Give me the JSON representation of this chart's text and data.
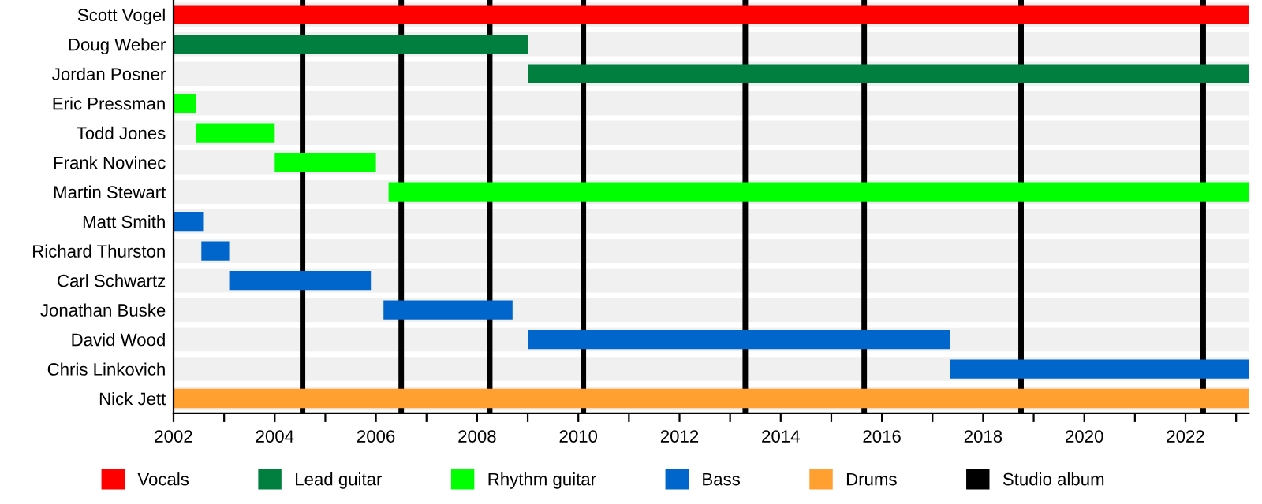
{
  "chart_data": {
    "type": "bar",
    "orientation": "horizontal",
    "categories": [
      "Scott Vogel",
      "Doug Weber",
      "Jordan Posner",
      "Eric Pressman",
      "Todd Jones",
      "Frank Novinec",
      "Martin Stewart",
      "Matt Smith",
      "Richard Thurston",
      "Carl Schwartz",
      "Jonathan Buske",
      "David Wood",
      "Chris Linkovich",
      "Nick Jett"
    ],
    "series": [
      {
        "name": "Vocals",
        "color": "#ff0000",
        "base": [
          2002,
          null,
          null,
          null,
          null,
          null,
          null,
          null,
          null,
          null,
          null,
          null,
          null,
          null
        ],
        "values": [
          21.25,
          null,
          null,
          null,
          null,
          null,
          null,
          null,
          null,
          null,
          null,
          null,
          null,
          null
        ]
      },
      {
        "name": "Lead guitar",
        "color": "#007f3f",
        "base": [
          null,
          2002,
          2009,
          null,
          null,
          null,
          null,
          null,
          null,
          null,
          null,
          null,
          null,
          null
        ],
        "values": [
          null,
          7,
          14.25,
          null,
          null,
          null,
          null,
          null,
          null,
          null,
          null,
          null,
          null,
          null
        ]
      },
      {
        "name": "Rhythm guitar",
        "color": "#00ff00",
        "base": [
          null,
          null,
          null,
          2002,
          2002.45,
          2004,
          2006.25,
          null,
          null,
          null,
          null,
          null,
          null,
          null
        ],
        "values": [
          null,
          null,
          null,
          0.45,
          1.55,
          2,
          17,
          null,
          null,
          null,
          null,
          null,
          null,
          null
        ]
      },
      {
        "name": "Bass",
        "color": "#0066cc",
        "base": [
          null,
          null,
          null,
          null,
          null,
          null,
          null,
          2002,
          2002.55,
          2003.1,
          2006.15,
          2009,
          2017.35,
          null
        ],
        "values": [
          null,
          null,
          null,
          null,
          null,
          null,
          null,
          0.6,
          0.55,
          2.8,
          2.55,
          8.35,
          5.9,
          null
        ]
      },
      {
        "name": "Drums",
        "color": "#ffa030",
        "base": [
          null,
          null,
          null,
          null,
          null,
          null,
          null,
          null,
          null,
          null,
          null,
          null,
          null,
          2002
        ],
        "values": [
          null,
          null,
          null,
          null,
          null,
          null,
          null,
          null,
          null,
          null,
          null,
          null,
          null,
          21.25
        ]
      }
    ],
    "ref_lines": [
      {
        "axis": "x",
        "value": 2004.55,
        "label": "Studio album",
        "color": "#000000"
      },
      {
        "axis": "x",
        "value": 2006.5,
        "color": "#000000"
      },
      {
        "axis": "x",
        "value": 2008.25,
        "color": "#000000"
      },
      {
        "axis": "x",
        "value": 2010.1,
        "color": "#000000"
      },
      {
        "axis": "x",
        "value": 2013.3,
        "color": "#000000"
      },
      {
        "axis": "x",
        "value": 2015.65,
        "color": "#000000"
      },
      {
        "axis": "x",
        "value": 2018.75,
        "color": "#000000"
      },
      {
        "axis": "x",
        "value": 2022.35,
        "color": "#000000"
      }
    ],
    "xlim": [
      2002,
      2023.25
    ],
    "xticks": [
      2002,
      {
        "value": 2003,
        "label": null
      },
      2004,
      {
        "value": 2005,
        "label": null
      },
      2006,
      {
        "value": 2007,
        "label": null
      },
      2008,
      {
        "value": 2009,
        "label": null
      },
      2010,
      {
        "value": 2011,
        "label": null
      },
      2012,
      {
        "value": 2013,
        "label": null
      },
      2014,
      {
        "value": 2015,
        "label": null
      },
      2016,
      {
        "value": 2017,
        "label": null
      },
      2018,
      {
        "value": 2019,
        "label": null
      },
      2020,
      {
        "value": 2021,
        "label": null
      },
      2022,
      {
        "value": 2023,
        "label": null
      }
    ],
    "grid": "y",
    "legend": "bottom"
  }
}
